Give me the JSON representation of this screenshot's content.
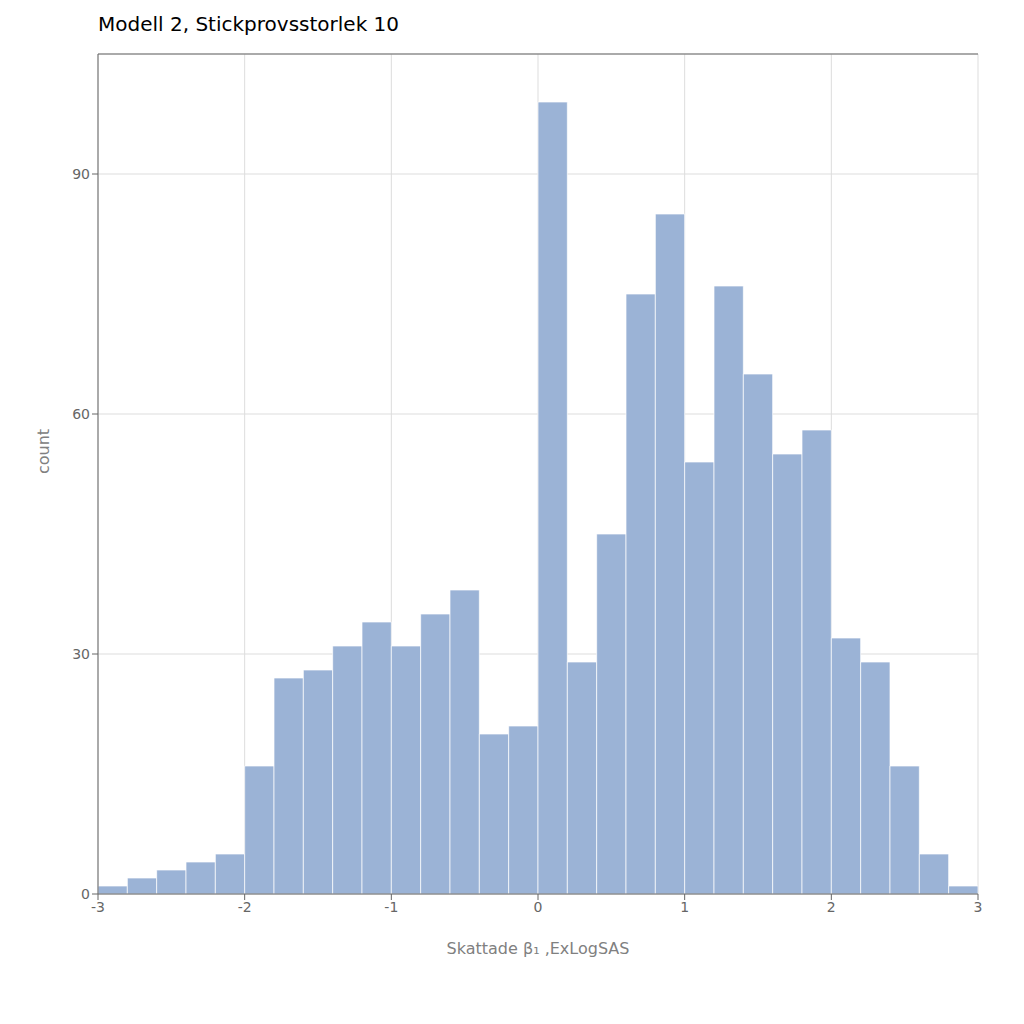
{
  "chart_data": {
    "type": "histogram",
    "title": "Modell 2, Stickprovsstorlek 10",
    "xlabel": "Skattade β₁ ,ExLogSAS",
    "ylabel": "count",
    "bins": [
      -3.0,
      -2.8,
      -2.6,
      -2.4,
      -2.2,
      -2.0,
      -1.8,
      -1.6,
      -1.4,
      -1.2,
      -1.0,
      -0.8,
      -0.6,
      -0.4,
      -0.2,
      0.0,
      0.2,
      0.4,
      0.6,
      0.8,
      1.0,
      1.2,
      1.4,
      1.6,
      1.8,
      2.0,
      2.2,
      2.4,
      2.6,
      2.8,
      3.0
    ],
    "counts": [
      1,
      2,
      3,
      4,
      5,
      16,
      27,
      28,
      31,
      34,
      31,
      35,
      38,
      20,
      21,
      99,
      29,
      45,
      75,
      85,
      54,
      76,
      65,
      55,
      58,
      32,
      29,
      16,
      5,
      1
    ],
    "color": "#9BB3D6",
    "xlim": [
      -3.0,
      3.0
    ],
    "ylim": [
      0,
      105
    ],
    "xticks": [
      -3,
      -2,
      -1,
      0,
      1,
      2,
      3
    ],
    "yticks": [
      0,
      30,
      60,
      90
    ],
    "grid": true
  }
}
